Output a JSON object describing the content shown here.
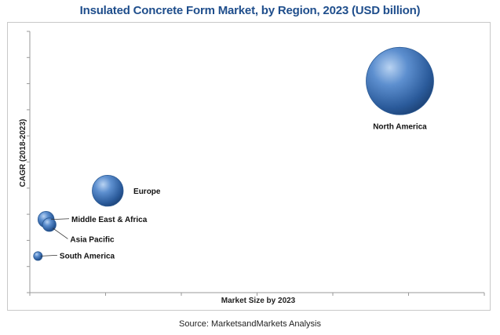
{
  "chart_data": {
    "type": "scatter",
    "subtype": "bubble",
    "title": "Insulated Concrete Form Market, by Region, 2023 (USD billion)",
    "xlabel": "Market Size by 2023",
    "ylabel": "CAGR (2018-2023)",
    "xlim": [
      0,
      14
    ],
    "ylim": [
      0,
      10
    ],
    "grid": false,
    "x_ticks": 7,
    "y_ticks": 11,
    "bubble_color": "#3a6fb0",
    "points": [
      {
        "label": "North America",
        "x": 11.4,
        "y": 8.1,
        "size": 1.0,
        "label_position": "below"
      },
      {
        "label": "Europe",
        "x": 2.4,
        "y": 3.9,
        "size": 0.46,
        "label_position": "right"
      },
      {
        "label": "Middle East & Africa",
        "x": 0.5,
        "y": 2.8,
        "size": 0.24,
        "label_position": "right-leader"
      },
      {
        "label": "Asia Pacific",
        "x": 0.6,
        "y": 2.6,
        "size": 0.2,
        "label_position": "below-right-leader"
      },
      {
        "label": "South America",
        "x": 0.25,
        "y": 1.4,
        "size": 0.13,
        "label_position": "right-leader"
      }
    ]
  },
  "source": "Source: MarketsandMarkets Analysis"
}
